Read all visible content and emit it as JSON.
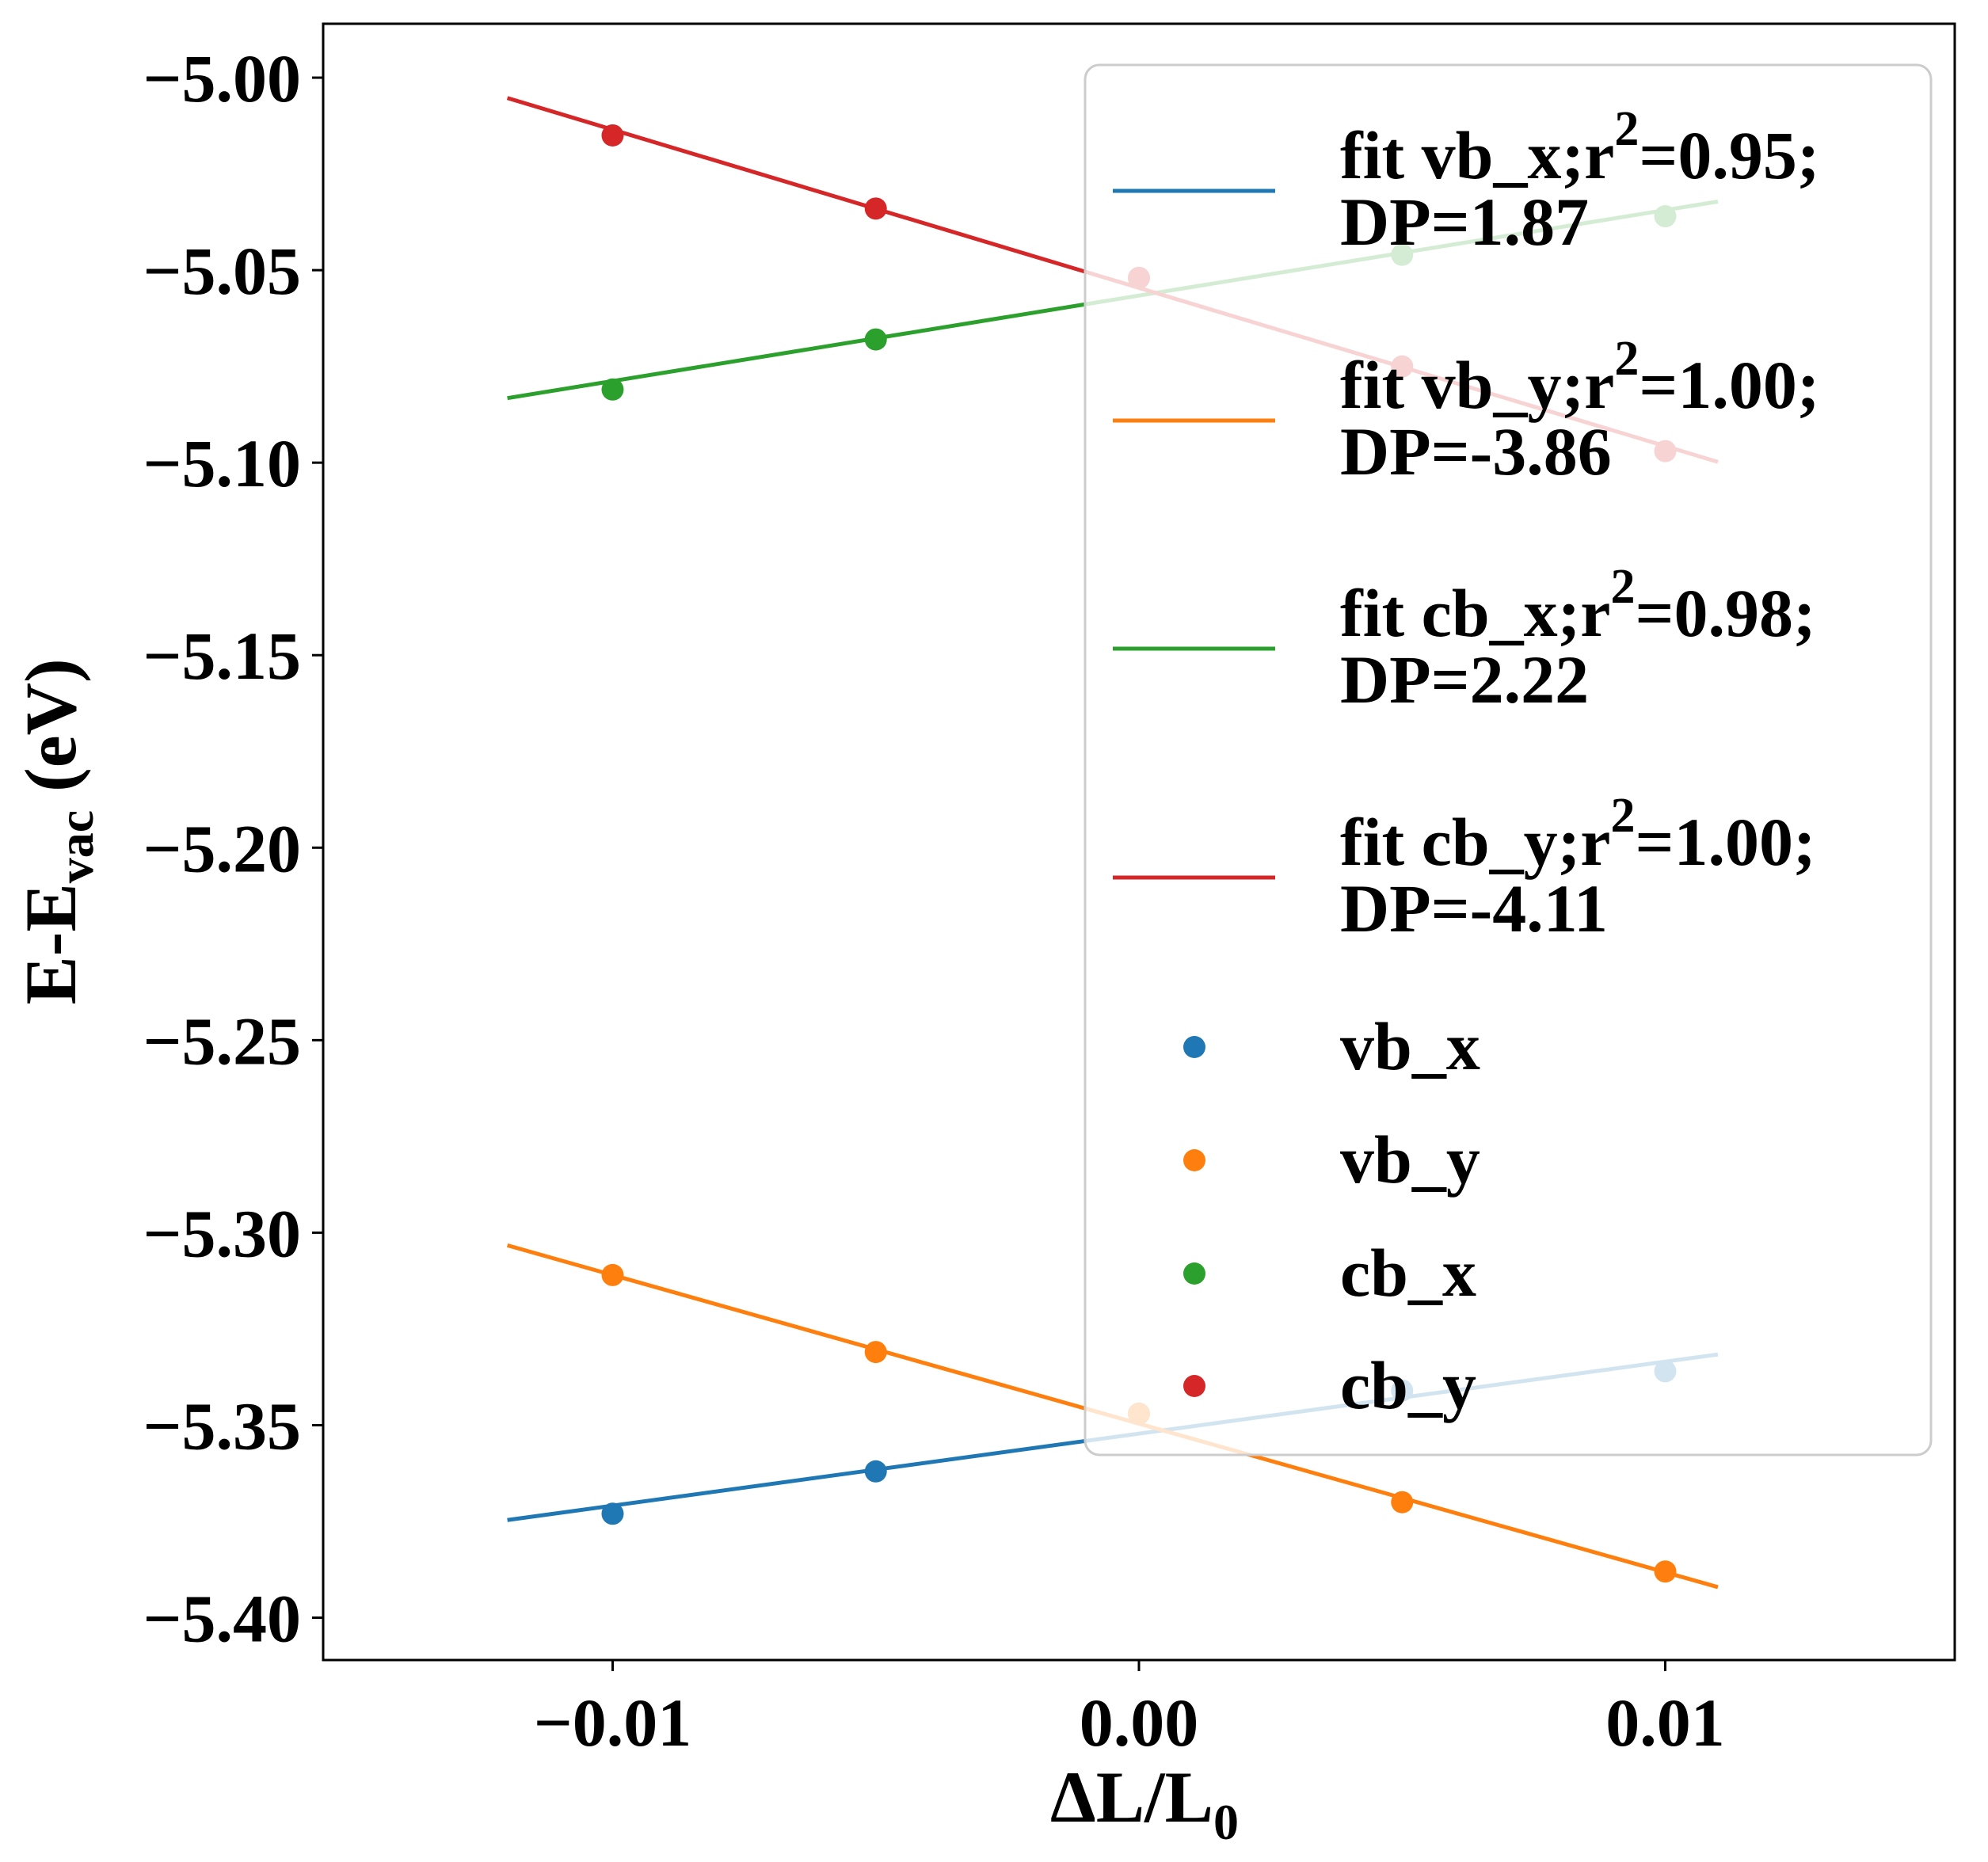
{
  "chart_data": {
    "type": "scatter",
    "xlabel": "ΔL/L0",
    "xlabel_main": "ΔL/L",
    "xlabel_sub": "0",
    "ylabel": "E-Evac (eV)",
    "ylabel_main": "E-E",
    "ylabel_sub": "vac",
    "ylabel_unit": " (eV)",
    "xlim": [
      -0.0155,
      0.0155
    ],
    "ylim": [
      -5.411,
      -4.986
    ],
    "xticks": [
      -0.01,
      0.0,
      0.01
    ],
    "xtick_labels": [
      "−0.01",
      "0.00",
      "0.01"
    ],
    "yticks": [
      -5.0,
      -5.05,
      -5.1,
      -5.15,
      -5.2,
      -5.25,
      -5.3,
      -5.35,
      -5.4
    ],
    "ytick_labels": [
      "−5.00",
      "−5.05",
      "−5.10",
      "−5.15",
      "−5.20",
      "−5.25",
      "−5.30",
      "−5.35",
      "−5.40"
    ],
    "fit_range": [
      -0.012,
      0.011
    ],
    "series": [
      {
        "name": "vb_x",
        "color": "#1f77b4",
        "x": [
          -0.01,
          -0.005,
          0.0,
          0.005,
          0.01
        ],
        "y": [
          -5.373,
          -5.362,
          -5.347,
          -5.341,
          -5.336
        ],
        "fit_label_line1": "fit vb_x;r",
        "fit_label_sup": "2",
        "fit_label_line1_end": "=0.95;",
        "fit_label_line2": "DP=1.87",
        "slope": 1.87,
        "intercept": -5.3522
      },
      {
        "name": "vb_y",
        "color": "#ff7f0e",
        "x": [
          -0.01,
          -0.005,
          0.0,
          0.005,
          0.01
        ],
        "y": [
          -5.311,
          -5.331,
          -5.347,
          -5.37,
          -5.388
        ],
        "fit_label_line1": "fit vb_y;r",
        "fit_label_sup": "2",
        "fit_label_line1_end": "=1.00;",
        "fit_label_line2": "DP=-3.86",
        "slope": -3.86,
        "intercept": -5.3496
      },
      {
        "name": "cb_x",
        "color": "#2ca02c",
        "x": [
          -0.01,
          -0.005,
          0.0,
          0.005,
          0.01
        ],
        "y": [
          -5.081,
          -5.068,
          -5.052,
          -5.046,
          -5.036
        ],
        "fit_label_line1": "fit cb_x;r",
        "fit_label_sup": "2",
        "fit_label_line1_end": "=0.98;",
        "fit_label_line2": "DP=2.22",
        "slope": 2.22,
        "intercept": -5.0566
      },
      {
        "name": "cb_y",
        "color": "#d62728",
        "x": [
          -0.01,
          -0.005,
          0.0,
          0.005,
          0.01
        ],
        "y": [
          -5.015,
          -5.034,
          -5.052,
          -5.075,
          -5.097
        ],
        "fit_label_line1": "fit cb_y;r",
        "fit_label_sup": "2",
        "fit_label_line1_end": "=1.00;",
        "fit_label_line2": "DP=-4.11",
        "slope": -4.11,
        "intercept": -5.0546
      }
    ],
    "legend_location": "top-right",
    "grid": false
  }
}
